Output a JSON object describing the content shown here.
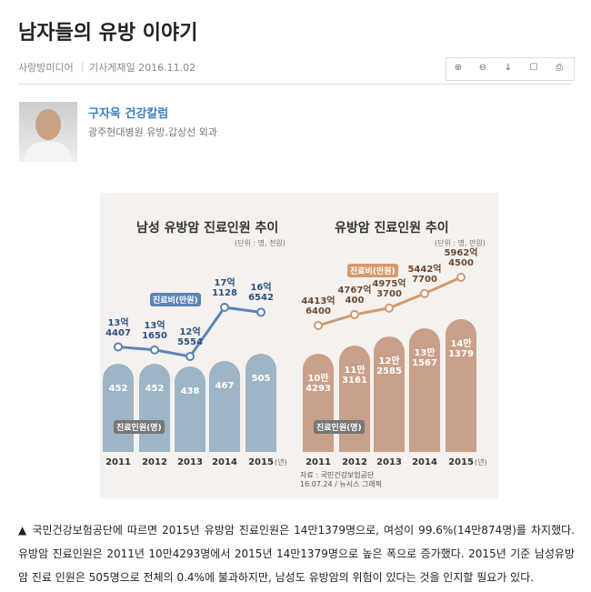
{
  "header": {
    "title": "남자들의 유방 이야기",
    "source": "사랑방미디어",
    "date": "기사게재일 2016.11.02"
  },
  "author": {
    "name": "구자욱 건강칼럼",
    "affiliation": "광주현대병원 유방,갑상선 외과"
  },
  "chart_data": [
    {
      "type": "bar-line",
      "title": "남성 유방암 진료인원 추이",
      "subtitle": "(단위 : 명, 천원)",
      "categories": [
        "2011",
        "2012",
        "2013",
        "2014",
        "2015"
      ],
      "x_unit": "(년)",
      "series": [
        {
          "name": "진료비(만원)",
          "color": "#5b84b8",
          "values": [
            134407,
            131650,
            125554,
            171128,
            166542
          ],
          "value_labels": [
            "13억\n4407",
            "13억\n1650",
            "12억\n5554",
            "17억\n1128",
            "16억\n6542"
          ]
        },
        {
          "name": "진료인원(명)",
          "color": "#9db5c4",
          "values": [
            452,
            452,
            438,
            467,
            505
          ]
        }
      ]
    },
    {
      "type": "bar-line",
      "title": "유방암 진료인원 추이",
      "subtitle": "(단위 : 명, 만원)",
      "categories": [
        "2011",
        "2012",
        "2013",
        "2014",
        "2015"
      ],
      "x_unit": "(년)",
      "series": [
        {
          "name": "진료비(만원)",
          "color": "#d49a6e",
          "values": [
            44136400,
            47670400,
            49753700,
            54427700,
            59624500
          ],
          "value_labels": [
            "4413억\n6400",
            "4767억\n400",
            "4975억\n3700",
            "5442억\n7700",
            "5962억\n4500"
          ]
        },
        {
          "name": "진료인원(명)",
          "color": "#c9a08a",
          "values": [
            104293,
            113161,
            122585,
            131567,
            141379
          ],
          "value_labels": [
            "10만\n4293",
            "11만\n3161",
            "12만\n2585",
            "13만\n1567",
            "14만\n1379"
          ]
        }
      ],
      "note": "자료 : 국민건강보험공단\n16.07.24 / 뉴시스 그래픽"
    }
  ],
  "caption": "▲ 국민건강보험공단에 따르면 2015년 유방암 진료인원은 14만1379명으로, 여성이 99.6%(14만874명)를 차지했다. 유방암 진료인원은 2011년 10만4293명에서 2015년 14만1379명으로 높은 폭으로 증가했다. 2015년 기준 남성유방암 진료 인원은 505명으로 전체의 0.4%에 불과하지만, 남성도 유방암의 위험이 있다는 것을 인지할 필요가 있다."
}
